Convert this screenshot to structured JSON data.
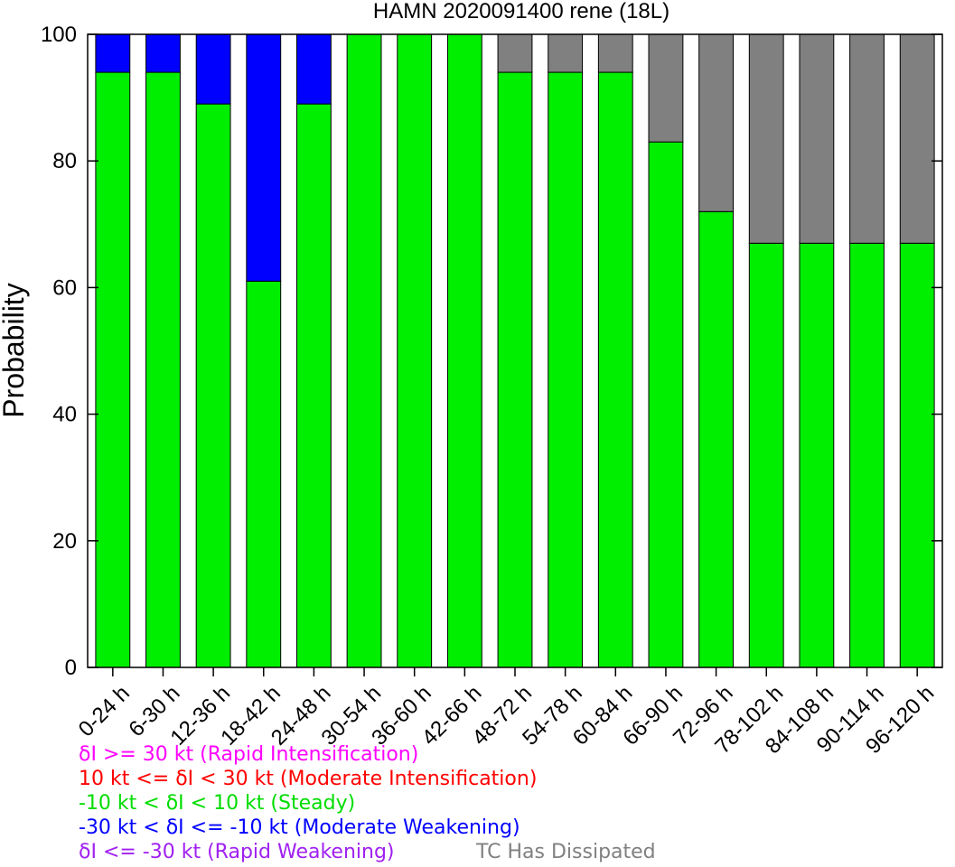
{
  "chart_data": {
    "type": "bar",
    "stacked": true,
    "title": "HAMN 2020091400 rene (18L)",
    "xlabel": "",
    "ylabel": "Probability",
    "ylim": [
      0,
      100
    ],
    "yticks": [
      0,
      20,
      40,
      60,
      80,
      100
    ],
    "grid": false,
    "categories": [
      "0-24 h",
      "6-30 h",
      "12-36 h",
      "18-42 h",
      "24-48 h",
      "30-54 h",
      "36-60 h",
      "42-66 h",
      "48-72 h",
      "54-78 h",
      "60-84 h",
      "66-90 h",
      "72-96 h",
      "78-102 h",
      "84-108 h",
      "90-114 h",
      "96-120 h"
    ],
    "series": [
      {
        "key": "rapid_intensification",
        "color": "#ff00ff",
        "values": [
          0,
          0,
          0,
          0,
          0,
          0,
          0,
          0,
          0,
          0,
          0,
          0,
          0,
          0,
          0,
          0,
          0
        ]
      },
      {
        "key": "moderate_intensification",
        "color": "#ff0000",
        "values": [
          0,
          0,
          0,
          0,
          0,
          0,
          0,
          0,
          0,
          0,
          0,
          0,
          0,
          0,
          0,
          0,
          0
        ]
      },
      {
        "key": "steady",
        "color": "#00ee00",
        "values": [
          94,
          94,
          89,
          61,
          89,
          100,
          100,
          100,
          94,
          94,
          94,
          83,
          72,
          67,
          67,
          67,
          67
        ]
      },
      {
        "key": "moderate_weakening",
        "color": "#0000ff",
        "values": [
          6,
          6,
          11,
          39,
          11,
          0,
          0,
          0,
          0,
          0,
          0,
          0,
          0,
          0,
          0,
          0,
          0
        ]
      },
      {
        "key": "rapid_weakening",
        "color": "#a020f0",
        "values": [
          0,
          0,
          0,
          0,
          0,
          0,
          0,
          0,
          0,
          0,
          0,
          0,
          0,
          0,
          0,
          0,
          0
        ]
      },
      {
        "key": "dissipated",
        "color": "#808080",
        "values": [
          0,
          0,
          0,
          0,
          0,
          0,
          0,
          0,
          6,
          6,
          6,
          17,
          28,
          33,
          33,
          33,
          33
        ]
      }
    ],
    "legend": {
      "placement": "bottom-left",
      "entries": [
        {
          "text": "δI >= 30 kt (Rapid Intensification)",
          "color": "#ff00ff"
        },
        {
          "text": "10 kt <= δI < 30 kt (Moderate Intensification)",
          "color": "#ff0000"
        },
        {
          "text": "-10 kt < δI < 10 kt (Steady)",
          "color": "#00dd00"
        },
        {
          "text": "-30 kt < δI <= -10 kt (Moderate Weakening)",
          "color": "#0000ff"
        },
        {
          "text": "δI <= -30 kt (Rapid Weakening)",
          "color": "#a020f0"
        },
        {
          "text": "TC Has Dissipated",
          "color": "#808080"
        }
      ]
    }
  }
}
